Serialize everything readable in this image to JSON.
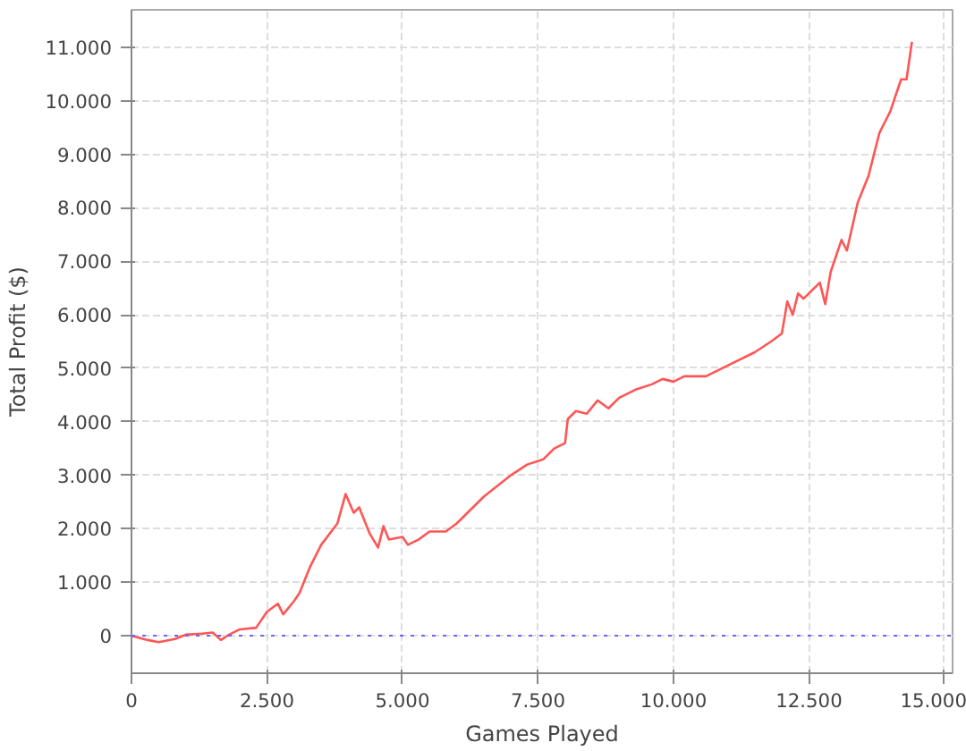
{
  "chart_data": {
    "type": "line",
    "xlabel": "Games Played",
    "ylabel": "Total Profit ($)",
    "xlim": [
      0,
      15150
    ],
    "ylim": [
      -700,
      11700
    ],
    "xticks": [
      0,
      {
        "value": 2500,
        "label": "2.500"
      },
      {
        "value": 5000,
        "label": "5.000"
      },
      {
        "value": 7500,
        "label": "7.500"
      },
      {
        "value": 10000,
        "label": "10.000"
      },
      {
        "value": 12500,
        "label": "12.500"
      },
      {
        "value": 15000,
        "label": "15.000"
      }
    ],
    "yticks": [
      0,
      {
        "value": 1000,
        "label": "1.000"
      },
      {
        "value": 2000,
        "label": "2.000"
      },
      {
        "value": 3000,
        "label": "3.000"
      },
      {
        "value": 4000,
        "label": "4.000"
      },
      {
        "value": 5000,
        "label": "5.000"
      },
      {
        "value": 6000,
        "label": "6.000"
      },
      {
        "value": 7000,
        "label": "7.000"
      },
      {
        "value": 8000,
        "label": "8.000"
      },
      {
        "value": 9000,
        "label": "9.000"
      },
      {
        "value": 10000,
        "label": "10.000"
      },
      {
        "value": 11000,
        "label": "11.000"
      }
    ],
    "grid": true,
    "marker": "none",
    "line_style": "solid",
    "ref_lines": [
      {
        "axis": "y",
        "value": 0,
        "color": "#6666ff",
        "line_style": "dotted"
      }
    ],
    "x": [
      0,
      300,
      500,
      800,
      1000,
      1300,
      1500,
      1650,
      1800,
      2000,
      2300,
      2500,
      2700,
      2800,
      3000,
      3100,
      3300,
      3500,
      3800,
      3950,
      4100,
      4200,
      4400,
      4550,
      4650,
      4750,
      5000,
      5100,
      5300,
      5500,
      5800,
      6000,
      6500,
      7000,
      7300,
      7600,
      7800,
      8000,
      8050,
      8200,
      8400,
      8600,
      8800,
      9000,
      9300,
      9600,
      9800,
      10000,
      10200,
      10600,
      11000,
      11500,
      11800,
      12000,
      12100,
      12200,
      12300,
      12400,
      12700,
      12800,
      12900,
      13100,
      13200,
      13400,
      13600,
      13800,
      14000,
      14200,
      14300,
      14400
    ],
    "series": [
      {
        "color": "#ff5555",
        "values": [
          0,
          -80,
          -120,
          -60,
          20,
          40,
          60,
          -80,
          20,
          120,
          150,
          450,
          600,
          400,
          650,
          800,
          1300,
          1700,
          2100,
          2650,
          2300,
          2400,
          1900,
          1650,
          2050,
          1800,
          1850,
          1700,
          1800,
          1950,
          1950,
          2100,
          2600,
          3000,
          3200,
          3300,
          3500,
          3600,
          4050,
          4200,
          4150,
          4400,
          4250,
          4450,
          4600,
          4700,
          4800,
          4750,
          4850,
          4850,
          5050,
          5300,
          5500,
          5650,
          6250,
          6000,
          6400,
          6300,
          6600,
          6200,
          6800,
          7400,
          7200,
          8100,
          8600,
          9400,
          9800,
          10400,
          10400,
          11100
        ]
      }
    ]
  }
}
